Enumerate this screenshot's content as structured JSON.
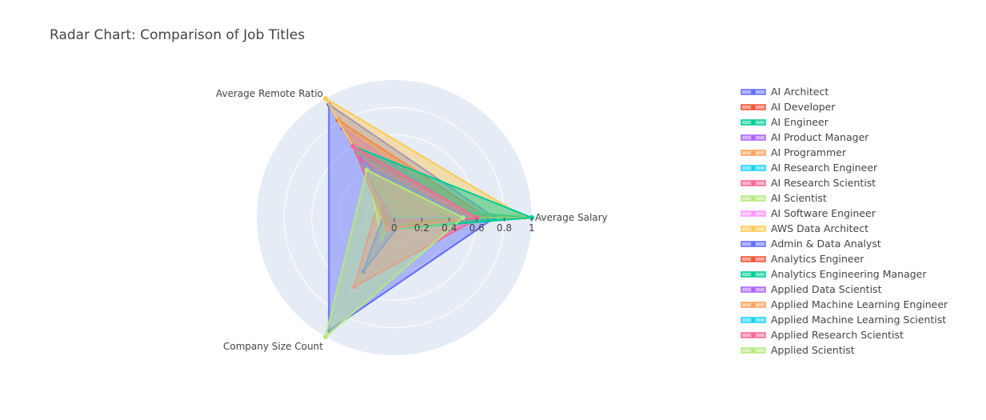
{
  "chart_data": {
    "type": "radar",
    "title": "Radar Chart: Comparison of Job Titles",
    "axes": [
      "Average Salary",
      "Average Remote Ratio",
      "Company Size Count"
    ],
    "radial_range": [
      0,
      1
    ],
    "radial_ticks": [
      "0",
      "0.2",
      "0.4",
      "0.6",
      "0.8",
      "1"
    ],
    "legend_position": "right",
    "series": [
      {
        "name": "AI Architect",
        "color": "#636efa",
        "values": [
          0.73,
          0.95,
          0.95
        ]
      },
      {
        "name": "AI Developer",
        "color": "#EF553B",
        "values": [
          0.68,
          0.82,
          0.0
        ]
      },
      {
        "name": "AI Engineer",
        "color": "#00cc96",
        "values": [
          1.0,
          0.1,
          0.1
        ]
      },
      {
        "name": "AI Product Manager",
        "color": "#ab63fa",
        "values": [
          0.55,
          0.75,
          0.02
        ]
      },
      {
        "name": "AI Programmer",
        "color": "#FFA15A",
        "values": [
          0.35,
          0.4,
          0.0
        ]
      },
      {
        "name": "AI Research Engineer",
        "color": "#19d3f3",
        "values": [
          0.48,
          0.55,
          0.0
        ]
      },
      {
        "name": "AI Research Scientist",
        "color": "#FF6692",
        "values": [
          0.62,
          0.2,
          0.58
        ]
      },
      {
        "name": "AI Scientist",
        "color": "#B6E880",
        "values": [
          0.0,
          0.4,
          0.18
        ]
      },
      {
        "name": "AI Software Engineer",
        "color": "#FF97FF",
        "values": [
          0.6,
          0.5,
          0.0
        ]
      },
      {
        "name": "AWS Data Architect",
        "color": "#FECB52",
        "values": [
          0.95,
          1.0,
          0.0
        ]
      },
      {
        "name": "Admin & Data Analyst",
        "color": "#636efa",
        "values": [
          0.08,
          0.1,
          0.45
        ]
      },
      {
        "name": "Analytics Engineer",
        "color": "#EF553B",
        "values": [
          0.4,
          0.25,
          0.1
        ]
      },
      {
        "name": "Analytics Engineering Manager",
        "color": "#00cc96",
        "values": [
          1.0,
          0.6,
          0.1
        ]
      },
      {
        "name": "Applied Data Scientist",
        "color": "#ab63fa",
        "values": [
          0.3,
          0.5,
          0.05
        ]
      },
      {
        "name": "Applied Machine Learning Engineer",
        "color": "#FFA15A",
        "values": [
          0.45,
          0.4,
          0.0
        ]
      },
      {
        "name": "Applied Machine Learning Scientist",
        "color": "#19d3f3",
        "values": [
          0.52,
          0.45,
          0.0
        ]
      },
      {
        "name": "Applied Research Scientist",
        "color": "#FF6692",
        "values": [
          0.6,
          0.6,
          0.1
        ]
      },
      {
        "name": "Applied Scientist",
        "color": "#B6E880",
        "values": [
          0.5,
          0.4,
          1.0
        ]
      }
    ]
  }
}
